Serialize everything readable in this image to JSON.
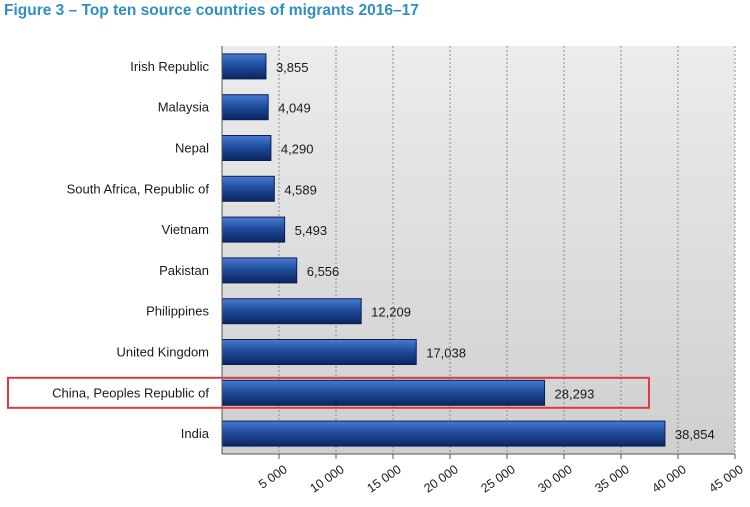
{
  "figure": {
    "title": "Figure 3 – Top ten source countries of migrants 2016–17"
  },
  "chart_data": {
    "type": "bar",
    "orientation": "horizontal",
    "title": "Figure 3 – Top ten source countries of migrants 2016–17",
    "categories": [
      "Irish Republic",
      "Malaysia",
      "Nepal",
      "South Africa, Republic of",
      "Vietnam",
      "Pakistan",
      "Philippines",
      "United Kingdom",
      "China, Peoples Republic of",
      "India"
    ],
    "values": [
      3855,
      4049,
      4290,
      4589,
      5493,
      6556,
      12209,
      17038,
      28293,
      38854
    ],
    "value_labels": [
      "3,855",
      "4,049",
      "4,290",
      "4,589",
      "5,493",
      "6,556",
      "12,209",
      "17,038",
      "28,293",
      "38,854"
    ],
    "x_ticks": [
      5000,
      10000,
      15000,
      20000,
      25000,
      30000,
      35000,
      40000,
      45000
    ],
    "x_tick_labels": [
      "5 000",
      "10 000",
      "15 000",
      "20 000",
      "25 000",
      "30 000",
      "35 000",
      "40 000",
      "45 000"
    ],
    "xlim": [
      0,
      45000
    ],
    "grid": true,
    "highlighted_category": "China, Peoples Republic of",
    "colors": {
      "bar": "#1f4e9e",
      "bar_dark": "#0c2560",
      "bar_light": "#4a7bd0",
      "plot_background": "#d9d9d9",
      "gridline": "#8c8c8c",
      "highlight_box": "#e0393e",
      "title": "#2f8fc4"
    }
  }
}
